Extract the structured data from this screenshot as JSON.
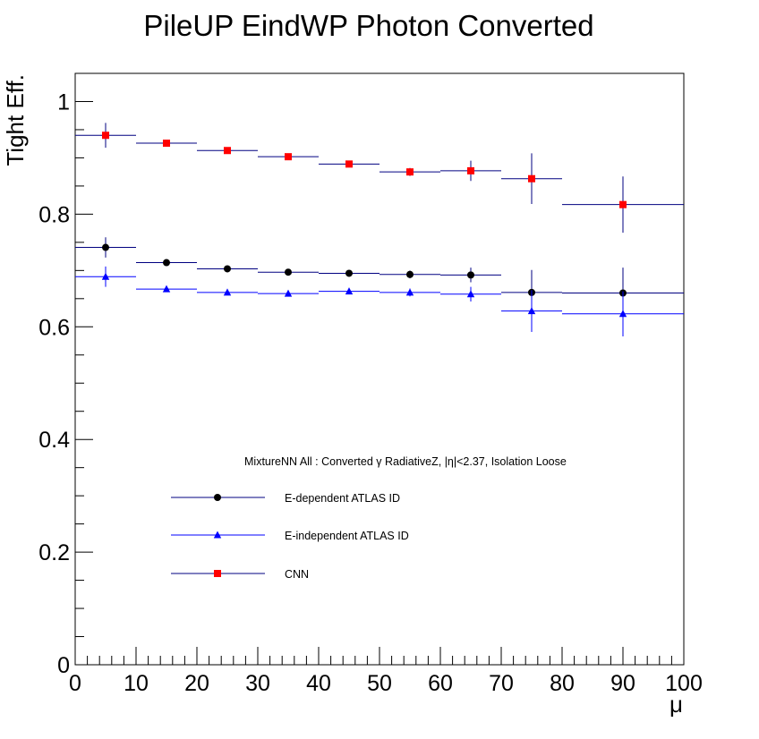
{
  "chart_data": {
    "type": "scatter",
    "title": "PileUP EindWP Photon Converted",
    "xlabel": "μ",
    "ylabel": "Tight Eff.",
    "xlim": [
      0,
      100
    ],
    "ylim": [
      0,
      1.05
    ],
    "x_ticks": [
      0,
      10,
      20,
      30,
      40,
      50,
      60,
      70,
      80,
      90,
      100
    ],
    "y_ticks": [
      0,
      0.2,
      0.4,
      0.6,
      0.8,
      1
    ],
    "x_tick_labels": [
      "0",
      "10",
      "20",
      "30",
      "40",
      "50",
      "60",
      "70",
      "80",
      "90",
      "100"
    ],
    "y_tick_labels": [
      "0",
      "0.2",
      "0.4",
      "0.6",
      "0.8",
      "1"
    ],
    "grid": false,
    "legend_position": "lower-left",
    "annotation": "MixtureNN All : Converted γ RadiativeZ, |η|<2.37, Isolation Loose",
    "series": [
      {
        "name": "E-dependent ATLAS ID",
        "marker": "circle",
        "marker_color": "#000000",
        "line_color": "#000080",
        "x": [
          5,
          15,
          25,
          35,
          45,
          55,
          65,
          75,
          90
        ],
        "x_low": [
          0,
          10,
          20,
          30,
          40,
          50,
          60,
          70,
          80
        ],
        "x_high": [
          10,
          20,
          30,
          40,
          50,
          60,
          70,
          80,
          100
        ],
        "y": [
          0.741,
          0.714,
          0.703,
          0.697,
          0.695,
          0.693,
          0.692,
          0.661,
          0.66
        ],
        "y_err": [
          0.018,
          0.005,
          0.004,
          0.004,
          0.005,
          0.007,
          0.013,
          0.04,
          0.045
        ]
      },
      {
        "name": "E-independent ATLAS ID",
        "marker": "triangle",
        "marker_color": "#0000ff",
        "line_color": "#0000ff",
        "x": [
          5,
          15,
          25,
          35,
          45,
          55,
          65,
          75,
          90
        ],
        "x_low": [
          0,
          10,
          20,
          30,
          40,
          50,
          60,
          70,
          80
        ],
        "x_high": [
          10,
          20,
          30,
          40,
          50,
          60,
          70,
          80,
          100
        ],
        "y": [
          0.689,
          0.667,
          0.661,
          0.659,
          0.663,
          0.661,
          0.658,
          0.628,
          0.623
        ],
        "y_err": [
          0.018,
          0.005,
          0.004,
          0.004,
          0.005,
          0.007,
          0.013,
          0.037,
          0.04
        ]
      },
      {
        "name": "CNN",
        "marker": "square",
        "marker_color": "#ff0000",
        "line_color": "#000080",
        "x": [
          5,
          15,
          25,
          35,
          45,
          55,
          65,
          75,
          90
        ],
        "x_low": [
          0,
          10,
          20,
          30,
          40,
          50,
          60,
          70,
          80
        ],
        "x_high": [
          10,
          20,
          30,
          40,
          50,
          60,
          70,
          80,
          100
        ],
        "y": [
          0.94,
          0.926,
          0.913,
          0.902,
          0.889,
          0.875,
          0.877,
          0.863,
          0.817
        ],
        "y_err": [
          0.022,
          0.005,
          0.004,
          0.004,
          0.005,
          0.007,
          0.018,
          0.045,
          0.05
        ]
      }
    ]
  }
}
